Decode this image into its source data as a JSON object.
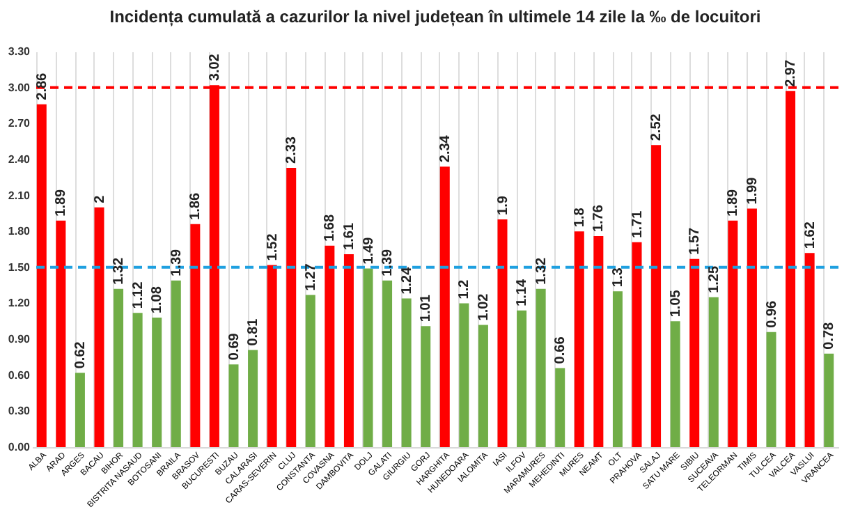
{
  "chart_data": {
    "type": "bar",
    "title": "Incidența cumulată a cazurilor la nivel județean în ultimele 14 zile la ‰ de locuitori",
    "categories": [
      "ALBA",
      "ARAD",
      "ARGES",
      "BACAU",
      "BIHOR",
      "BISTRITA NASAUD",
      "BOTOSANI",
      "BRAILA",
      "BRASOV",
      "BUCURESTI",
      "BUZAU",
      "CALARASI",
      "CARAS-SEVERIN",
      "CLUJ",
      "CONSTANTA",
      "COVASNA",
      "DAMBOVITA",
      "DOLJ",
      "GALATI",
      "GIURGIU",
      "GORJ",
      "HARGHITA",
      "HUNEDOARA",
      "IALOMITA",
      "IASI",
      "ILFOV",
      "MARAMURES",
      "MEHEDINTI",
      "MURES",
      "NEAMT",
      "OLT",
      "PRAHOVA",
      "SALAJ",
      "SATU MARE",
      "SIBIU",
      "SUCEAVA",
      "TELEORMAN",
      "TIMIS",
      "TULCEA",
      "VALCEA",
      "VASLUI",
      "VRANCEA"
    ],
    "values": [
      2.86,
      1.89,
      0.62,
      2,
      1.32,
      1.12,
      1.08,
      1.39,
      1.86,
      3.02,
      0.69,
      0.81,
      1.52,
      2.33,
      1.27,
      1.68,
      1.61,
      1.49,
      1.39,
      1.24,
      1.01,
      2.34,
      1.2,
      1.02,
      1.9,
      1.14,
      1.32,
      0.66,
      1.8,
      1.76,
      1.3,
      1.71,
      2.52,
      1.05,
      1.57,
      1.25,
      1.89,
      1.99,
      0.96,
      2.97,
      1.62,
      0.78
    ],
    "colors": [
      "#ff0000",
      "#ff0000",
      "#70ad47",
      "#ff0000",
      "#70ad47",
      "#70ad47",
      "#70ad47",
      "#70ad47",
      "#ff0000",
      "#ff0000",
      "#70ad47",
      "#70ad47",
      "#ff0000",
      "#ff0000",
      "#70ad47",
      "#ff0000",
      "#ff0000",
      "#70ad47",
      "#70ad47",
      "#70ad47",
      "#70ad47",
      "#ff0000",
      "#70ad47",
      "#70ad47",
      "#ff0000",
      "#70ad47",
      "#70ad47",
      "#70ad47",
      "#ff0000",
      "#ff0000",
      "#70ad47",
      "#ff0000",
      "#ff0000",
      "#70ad47",
      "#ff0000",
      "#70ad47",
      "#ff0000",
      "#ff0000",
      "#70ad47",
      "#ff0000",
      "#ff0000",
      "#70ad47"
    ],
    "ylim": [
      0,
      3.3
    ],
    "yticks": [
      {
        "value": 0,
        "label": "0.00"
      },
      {
        "value": 0.3,
        "label": "0.30"
      },
      {
        "value": 0.6,
        "label": "0.60"
      },
      {
        "value": 0.9,
        "label": "0.90"
      },
      {
        "value": 1.2,
        "label": "1.20"
      },
      {
        "value": 1.5,
        "label": "1.50"
      },
      {
        "value": 1.8,
        "label": "1.80"
      },
      {
        "value": 2.1,
        "label": "2.10"
      },
      {
        "value": 2.4,
        "label": "2.40"
      },
      {
        "value": 2.7,
        "label": "2.70"
      },
      {
        "value": 3,
        "label": "3.00"
      },
      {
        "value": 3.3,
        "label": "3.30"
      }
    ],
    "ref_lines": [
      {
        "axis": "y",
        "value": 3,
        "color": "#ff0000",
        "line_style": "dashed"
      },
      {
        "axis": "y",
        "value": 1.5,
        "color": "#1fa0e0",
        "line_style": "dashed"
      }
    ],
    "data_labels": true,
    "grid": "x"
  }
}
